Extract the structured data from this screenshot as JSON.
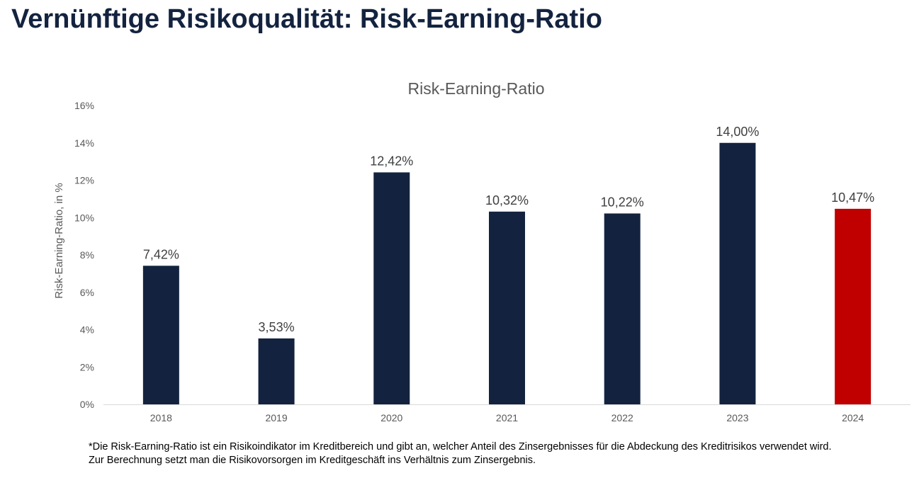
{
  "page": {
    "title": "Vernünftige Risikoqualität: Risk-Earning-Ratio"
  },
  "chart_data": {
    "type": "bar",
    "title": "Risk-Earning-Ratio",
    "xlabel": "",
    "ylabel": "Risk-Earning-Ratio, in %",
    "ylim": [
      0,
      16
    ],
    "yticks": [
      0,
      2,
      4,
      6,
      8,
      10,
      12,
      14,
      16
    ],
    "ytick_labels": [
      "0%",
      "2%",
      "4%",
      "6%",
      "8%",
      "10%",
      "12%",
      "14%",
      "16%"
    ],
    "grid": false,
    "categories": [
      "2018",
      "2019",
      "2020",
      "2021",
      "2022",
      "2023",
      "2024"
    ],
    "values": [
      7.42,
      3.53,
      12.42,
      10.32,
      10.22,
      14.0,
      10.47
    ],
    "data_labels": [
      "7,42%",
      "3,53%",
      "12,42%",
      "10,32%",
      "10,22%",
      "14,00%",
      "10,47%"
    ],
    "bar_colors": [
      "#13233f",
      "#13233f",
      "#13233f",
      "#13233f",
      "#13233f",
      "#13233f",
      "#c00000"
    ]
  },
  "footnote": {
    "line1": "*Die Risk-Earning-Ratio ist ein Risikoindikator im Kreditbereich und gibt an, welcher Anteil des Zinsergebnisses für die Abdeckung des Kreditrisikos verwendet wird.",
    "line2": "Zur Berechnung setzt man die Risikovorsorgen im Kreditgeschäft ins Verhältnis zum Zinsergebnis."
  },
  "colors": {
    "title": "#13233f",
    "bar": "#13233f",
    "highlight_bar": "#c00000",
    "axis_text": "#595959",
    "chart_title": "#595959",
    "data_label": "#404040",
    "axis_line": "#d9d9d9"
  }
}
